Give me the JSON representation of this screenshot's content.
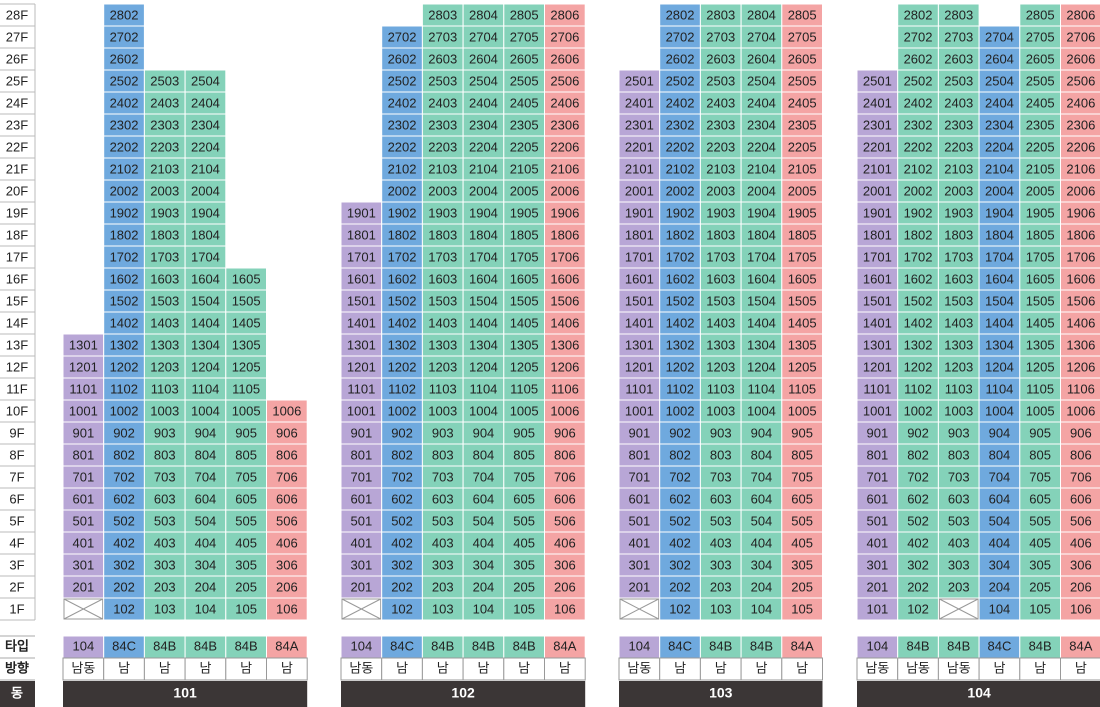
{
  "floors": [
    "1F",
    "2F",
    "3F",
    "4F",
    "5F",
    "6F",
    "7F",
    "8F",
    "9F",
    "10F",
    "11F",
    "12F",
    "13F",
    "14F",
    "15F",
    "16F",
    "17F",
    "18F",
    "19F",
    "20F",
    "21F",
    "22F",
    "23F",
    "24F",
    "25F",
    "26F",
    "27F",
    "28F"
  ],
  "row_labels": {
    "type": "타입",
    "direction": "방향",
    "building": "동"
  },
  "buildings": [
    {
      "name": "101",
      "columns": [
        {
          "type": "104",
          "direction": "남동",
          "color": "#b8a6d6",
          "pilotis": true,
          "units": [
            null,
            "201",
            "301",
            "401",
            "501",
            "601",
            "701",
            "801",
            "901",
            "1001",
            "1101",
            "1201",
            "1301"
          ]
        },
        {
          "type": "84C",
          "direction": "남",
          "color": "#6fa9de",
          "units": [
            "102",
            "202",
            "302",
            "402",
            "502",
            "602",
            "702",
            "802",
            "902",
            "1002",
            "1102",
            "1202",
            "1302",
            "1402",
            "1502",
            "1602",
            "1702",
            "1802",
            "1902",
            "2002",
            "2102",
            "2202",
            "2302",
            "2402",
            "2502",
            "2602",
            "2702",
            "2802"
          ]
        },
        {
          "type": "84B",
          "direction": "남",
          "color": "#84d2b9",
          "units": [
            "103",
            "203",
            "303",
            "403",
            "503",
            "603",
            "703",
            "803",
            "903",
            "1003",
            "1103",
            "1203",
            "1303",
            "1403",
            "1503",
            "1603",
            "1703",
            "1803",
            "1903",
            "2003",
            "2103",
            "2203",
            "2303",
            "2403",
            "2503"
          ]
        },
        {
          "type": "84B",
          "direction": "남",
          "color": "#84d2b9",
          "units": [
            "104",
            "204",
            "304",
            "404",
            "504",
            "604",
            "704",
            "804",
            "904",
            "1004",
            "1104",
            "1204",
            "1304",
            "1404",
            "1504",
            "1604",
            "1704",
            "1804",
            "1904",
            "2004",
            "2104",
            "2204",
            "2304",
            "2404",
            "2504"
          ]
        },
        {
          "type": "84B",
          "direction": "남",
          "color": "#84d2b9",
          "units": [
            "105",
            "205",
            "305",
            "405",
            "505",
            "605",
            "705",
            "805",
            "905",
            "1005",
            "1105",
            "1205",
            "1305",
            "1405",
            "1505",
            "1605"
          ]
        },
        {
          "type": "84A",
          "direction": "남",
          "color": "#f4a4a4",
          "units": [
            "106",
            "206",
            "306",
            "406",
            "506",
            "606",
            "706",
            "806",
            "906",
            "1006"
          ]
        }
      ]
    },
    {
      "name": "102",
      "columns": [
        {
          "type": "104",
          "direction": "남동",
          "color": "#b8a6d6",
          "pilotis": true,
          "units": [
            null,
            "201",
            "301",
            "401",
            "501",
            "601",
            "701",
            "801",
            "901",
            "1001",
            "1101",
            "1201",
            "1301",
            "1401",
            "1501",
            "1601",
            "1701",
            "1801",
            "1901"
          ]
        },
        {
          "type": "84C",
          "direction": "남",
          "color": "#6fa9de",
          "units": [
            "102",
            "202",
            "302",
            "402",
            "502",
            "602",
            "702",
            "802",
            "902",
            "1002",
            "1102",
            "1202",
            "1302",
            "1402",
            "1502",
            "1602",
            "1702",
            "1802",
            "1902",
            "2002",
            "2102",
            "2202",
            "2302",
            "2402",
            "2502",
            "2602",
            "2702"
          ]
        },
        {
          "type": "84B",
          "direction": "남",
          "color": "#84d2b9",
          "units": [
            "103",
            "203",
            "303",
            "403",
            "503",
            "603",
            "703",
            "803",
            "903",
            "1003",
            "1103",
            "1203",
            "1303",
            "1403",
            "1503",
            "1603",
            "1703",
            "1803",
            "1903",
            "2003",
            "2103",
            "2203",
            "2303",
            "2403",
            "2503",
            "2603",
            "2703",
            "2803"
          ]
        },
        {
          "type": "84B",
          "direction": "남",
          "color": "#84d2b9",
          "units": [
            "104",
            "204",
            "304",
            "404",
            "504",
            "604",
            "704",
            "804",
            "904",
            "1004",
            "1104",
            "1204",
            "1304",
            "1404",
            "1504",
            "1604",
            "1704",
            "1804",
            "1904",
            "2004",
            "2104",
            "2204",
            "2304",
            "2404",
            "2504",
            "2604",
            "2704",
            "2804"
          ]
        },
        {
          "type": "84B",
          "direction": "남",
          "color": "#84d2b9",
          "units": [
            "105",
            "205",
            "305",
            "405",
            "505",
            "605",
            "705",
            "805",
            "905",
            "1005",
            "1105",
            "1205",
            "1305",
            "1405",
            "1505",
            "1605",
            "1705",
            "1805",
            "1905",
            "2005",
            "2105",
            "2205",
            "2305",
            "2405",
            "2505",
            "2605",
            "2705",
            "2805"
          ]
        },
        {
          "type": "84A",
          "direction": "남",
          "color": "#f4a4a4",
          "units": [
            "106",
            "206",
            "306",
            "406",
            "506",
            "606",
            "706",
            "806",
            "906",
            "1006",
            "1106",
            "1206",
            "1306",
            "1406",
            "1506",
            "1606",
            "1706",
            "1806",
            "1906",
            "2006",
            "2106",
            "2206",
            "2306",
            "2406",
            "2506",
            "2606",
            "2706",
            "2806"
          ]
        }
      ]
    },
    {
      "name": "103",
      "columns": [
        {
          "type": "104",
          "direction": "남동",
          "color": "#b8a6d6",
          "pilotis": true,
          "units": [
            null,
            "201",
            "301",
            "401",
            "501",
            "601",
            "701",
            "801",
            "901",
            "1001",
            "1101",
            "1201",
            "1301",
            "1401",
            "1501",
            "1601",
            "1701",
            "1801",
            "1901",
            "2001",
            "2101",
            "2201",
            "2301",
            "2401",
            "2501"
          ]
        },
        {
          "type": "84C",
          "direction": "남",
          "color": "#6fa9de",
          "units": [
            "102",
            "202",
            "302",
            "402",
            "502",
            "602",
            "702",
            "802",
            "902",
            "1002",
            "1102",
            "1202",
            "1302",
            "1402",
            "1502",
            "1602",
            "1702",
            "1802",
            "1902",
            "2002",
            "2102",
            "2202",
            "2302",
            "2402",
            "2502",
            "2602",
            "2702",
            "2802"
          ]
        },
        {
          "type": "84B",
          "direction": "남",
          "color": "#84d2b9",
          "units": [
            "103",
            "203",
            "303",
            "403",
            "503",
            "603",
            "703",
            "803",
            "903",
            "1003",
            "1103",
            "1203",
            "1303",
            "1403",
            "1503",
            "1603",
            "1703",
            "1803",
            "1903",
            "2003",
            "2103",
            "2203",
            "2303",
            "2403",
            "2503",
            "2603",
            "2703",
            "2803"
          ]
        },
        {
          "type": "84B",
          "direction": "남",
          "color": "#84d2b9",
          "units": [
            "104",
            "204",
            "304",
            "404",
            "504",
            "604",
            "704",
            "804",
            "904",
            "1004",
            "1104",
            "1204",
            "1304",
            "1404",
            "1504",
            "1604",
            "1704",
            "1804",
            "1904",
            "2004",
            "2104",
            "2204",
            "2304",
            "2404",
            "2504",
            "2604",
            "2704",
            "2804"
          ]
        },
        {
          "type": "84A",
          "direction": "남",
          "color": "#f4a4a4",
          "units": [
            "105",
            "205",
            "305",
            "405",
            "505",
            "605",
            "705",
            "805",
            "905",
            "1005",
            "1105",
            "1205",
            "1305",
            "1405",
            "1505",
            "1605",
            "1705",
            "1805",
            "1905",
            "2005",
            "2105",
            "2205",
            "2305",
            "2405",
            "2505",
            "2605",
            "2705",
            "2805"
          ]
        }
      ]
    },
    {
      "name": "104",
      "columns": [
        {
          "type": "104",
          "direction": "남동",
          "color": "#b8a6d6",
          "units": [
            "101",
            "201",
            "301",
            "401",
            "501",
            "601",
            "701",
            "801",
            "901",
            "1001",
            "1101",
            "1201",
            "1301",
            "1401",
            "1501",
            "1601",
            "1701",
            "1801",
            "1901",
            "2001",
            "2101",
            "2201",
            "2301",
            "2401",
            "2501"
          ]
        },
        {
          "type": "84B",
          "direction": "남동",
          "color": "#84d2b9",
          "units": [
            "102",
            "202",
            "302",
            "402",
            "502",
            "602",
            "702",
            "802",
            "902",
            "1002",
            "1102",
            "1202",
            "1302",
            "1402",
            "1502",
            "1602",
            "1702",
            "1802",
            "1902",
            "2002",
            "2102",
            "2202",
            "2302",
            "2402",
            "2502",
            "2602",
            "2702",
            "2802"
          ]
        },
        {
          "type": "84B",
          "direction": "남동",
          "color": "#84d2b9",
          "pilotis": true,
          "units": [
            null,
            "203",
            "303",
            "403",
            "503",
            "603",
            "703",
            "803",
            "903",
            "1003",
            "1103",
            "1203",
            "1303",
            "1403",
            "1503",
            "1603",
            "1703",
            "1803",
            "1903",
            "2003",
            "2103",
            "2203",
            "2303",
            "2403",
            "2503",
            "2603",
            "2703",
            "2803"
          ]
        },
        {
          "type": "84C",
          "direction": "남",
          "color": "#6fa9de",
          "units": [
            "104",
            "204",
            "304",
            "404",
            "504",
            "604",
            "704",
            "804",
            "904",
            "1004",
            "1104",
            "1204",
            "1304",
            "1404",
            "1504",
            "1604",
            "1704",
            "1804",
            "1904",
            "2004",
            "2104",
            "2204",
            "2304",
            "2404",
            "2504",
            "2604",
            "2704"
          ]
        },
        {
          "type": "84B",
          "direction": "남",
          "color": "#84d2b9",
          "units": [
            "105",
            "205",
            "305",
            "405",
            "505",
            "605",
            "705",
            "805",
            "905",
            "1005",
            "1105",
            "1205",
            "1305",
            "1405",
            "1505",
            "1605",
            "1705",
            "1805",
            "1905",
            "2005",
            "2105",
            "2205",
            "2305",
            "2405",
            "2505",
            "2605",
            "2705",
            "2805"
          ]
        },
        {
          "type": "84A",
          "direction": "남",
          "color": "#f4a4a4",
          "units": [
            "106",
            "206",
            "306",
            "406",
            "506",
            "606",
            "706",
            "806",
            "906",
            "1006",
            "1106",
            "1206",
            "1306",
            "1406",
            "1506",
            "1606",
            "1706",
            "1806",
            "1906",
            "2006",
            "2106",
            "2206",
            "2306",
            "2406",
            "2506",
            "2606",
            "2706",
            "2806"
          ]
        }
      ]
    }
  ]
}
